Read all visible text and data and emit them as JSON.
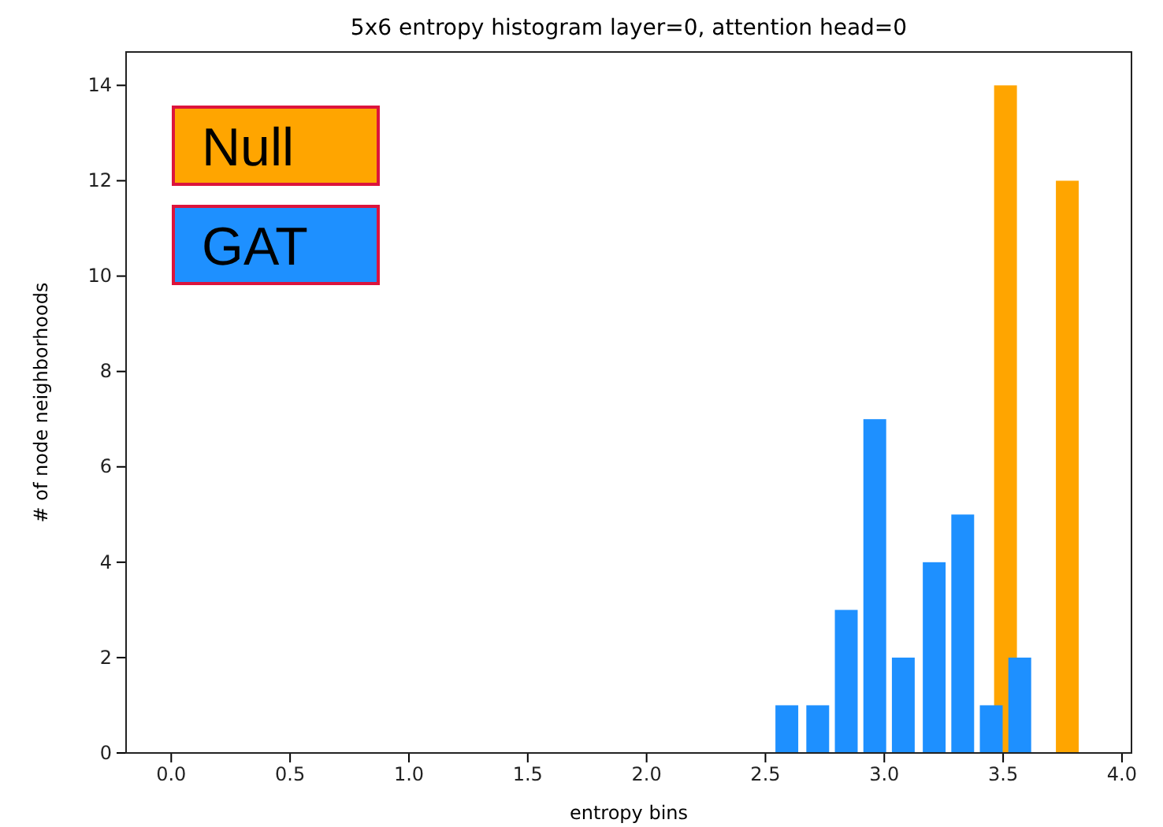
{
  "chart_data": {
    "type": "bar",
    "title": "5x6 entropy histogram layer=0, attention head=0",
    "xlabel": "entropy bins",
    "ylabel": "# of node neighborhoods",
    "xlim": [
      -0.19,
      4.04
    ],
    "xticks": [
      {
        "value": 0,
        "label": "0.0"
      },
      {
        "value": 0.5,
        "label": "0.5"
      },
      {
        "value": 1,
        "label": "1.0"
      },
      {
        "value": 1.5,
        "label": "1.5"
      },
      {
        "value": 2,
        "label": "2.0"
      },
      {
        "value": 2.5,
        "label": "2.5"
      },
      {
        "value": 3,
        "label": "3.0"
      },
      {
        "value": 3.5,
        "label": "3.5"
      },
      {
        "value": 4,
        "label": "4.0"
      }
    ],
    "ylim": [
      0,
      14.7
    ],
    "yticks": [
      0,
      2,
      4,
      6,
      8,
      10,
      12,
      14
    ],
    "grid": false,
    "legend": "top left",
    "series": [
      {
        "name": "Null",
        "color": "#ffa500",
        "x": [
          3.51,
          3.77
        ],
        "values": [
          14,
          12
        ]
      },
      {
        "name": "GAT",
        "color": "#1e90ff",
        "x": [
          2.59,
          2.72,
          2.84,
          2.96,
          3.08,
          3.21,
          3.33,
          3.45,
          3.57
        ],
        "values": [
          1,
          1,
          3,
          7,
          2,
          4,
          5,
          1,
          2
        ]
      }
    ]
  }
}
